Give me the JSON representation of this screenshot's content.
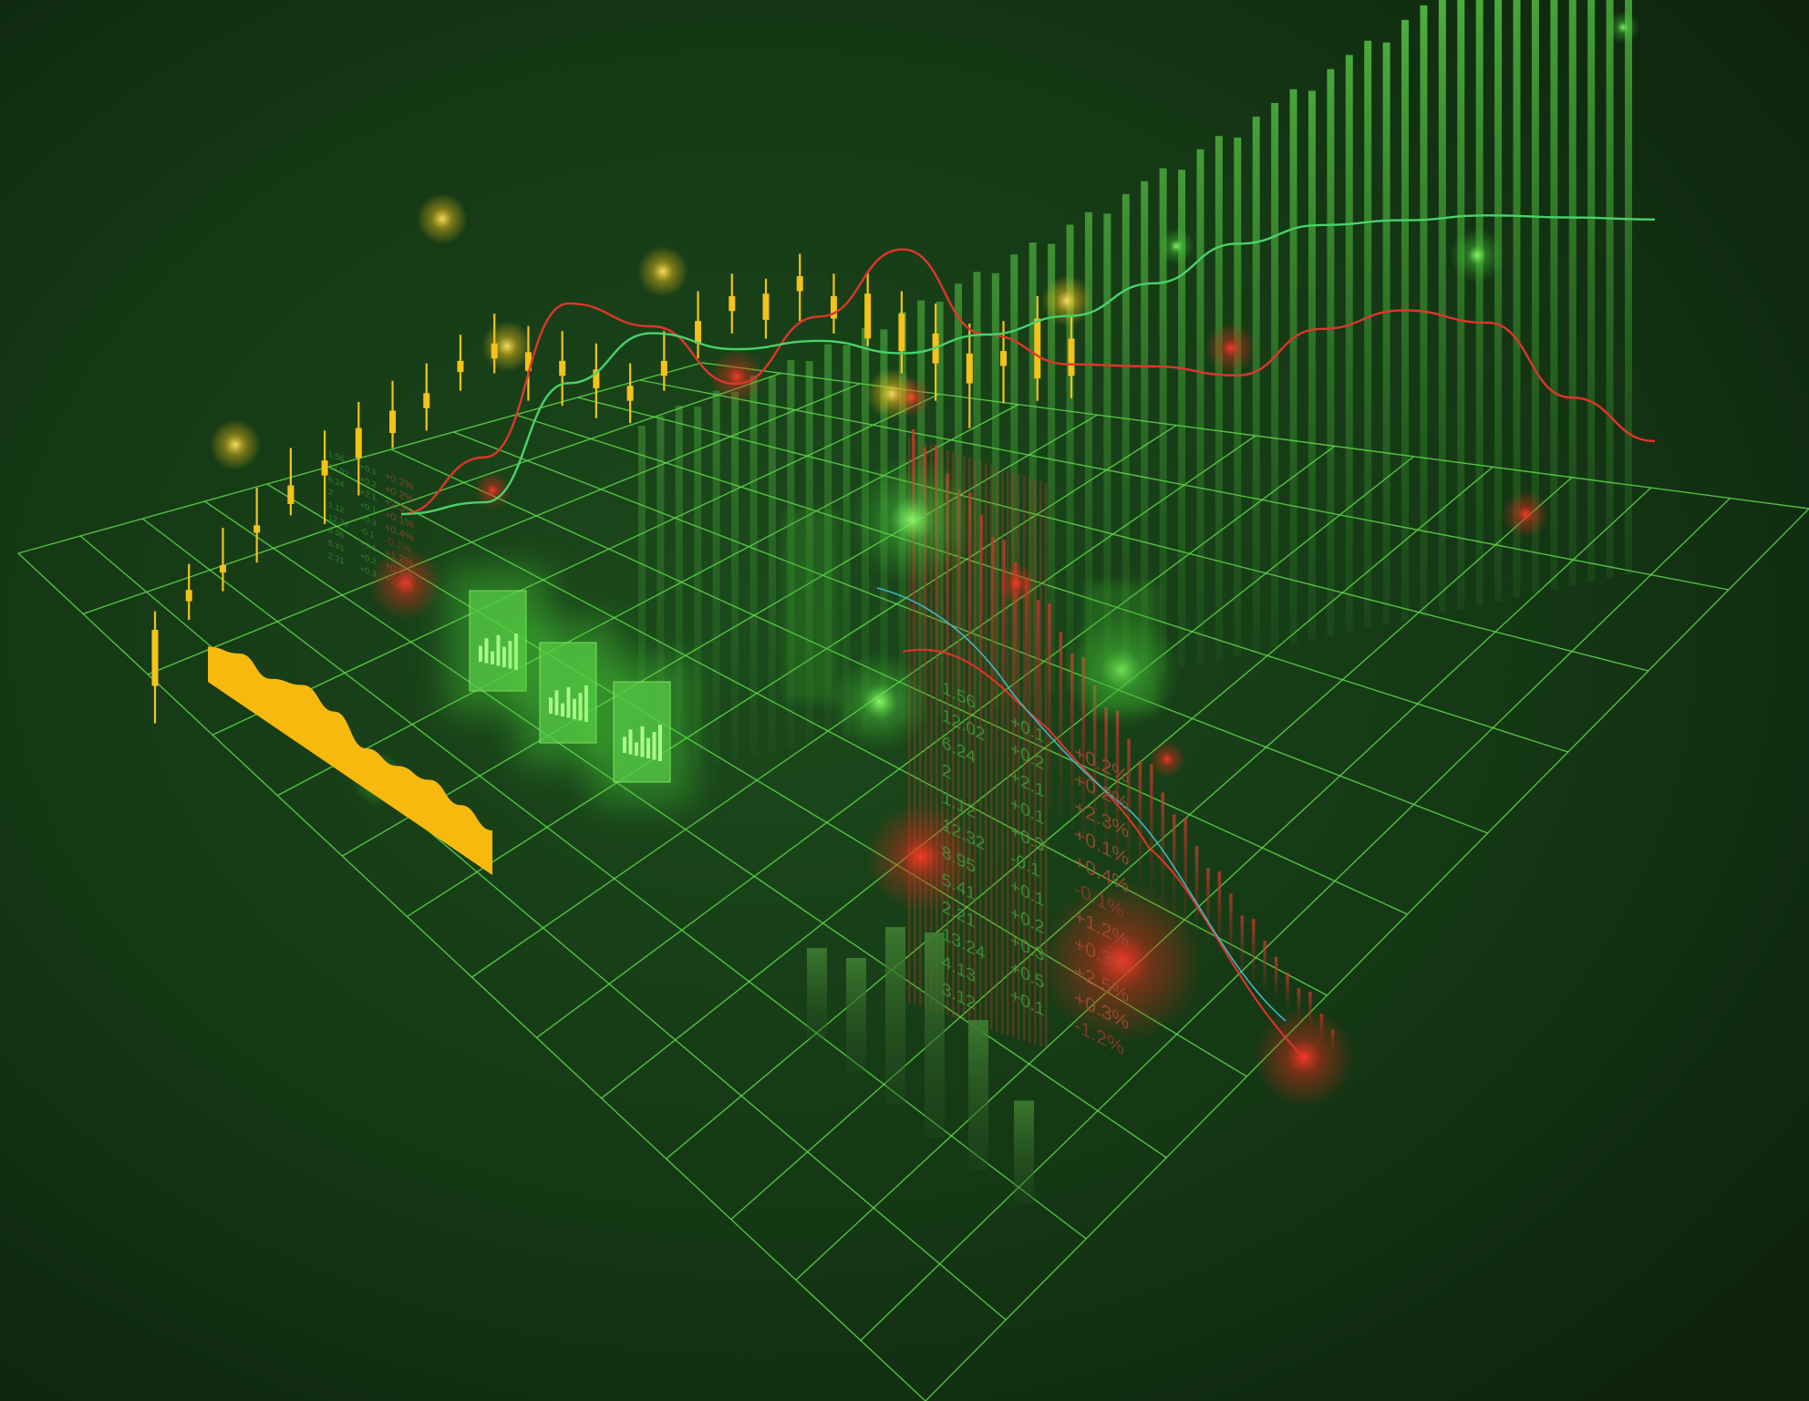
{
  "colors": {
    "background": "#143614",
    "background_edge": "#0d220d",
    "grid": "#5fd84a",
    "candle": "#f5c21a",
    "bar_green": "#4fc23c",
    "bar_red": "#c8342a",
    "line_red": "#e0352b",
    "line_green": "#49d26c",
    "line_cyan": "#3fb6c4",
    "area_yellow": "#f7b90d",
    "text_green": "#3f9a3a",
    "text_red": "#8e3a2a"
  },
  "ticker_main": [
    {
      "price": "1.56",
      "change": "+0.1",
      "pct": "+0.2%"
    },
    {
      "price": "12.02",
      "change": "+0.2",
      "pct": "+0.2%"
    },
    {
      "price": "6.24",
      "change": "+2.1",
      "pct": "+2.3%"
    },
    {
      "price": "2",
      "change": "+0.1",
      "pct": "+0.1%"
    },
    {
      "price": "1.12",
      "change": "+0.3",
      "pct": "+0.4%"
    },
    {
      "price": "12.32",
      "change": "-0.1",
      "pct": "-0.1%"
    },
    {
      "price": "8.95",
      "change": "+0.1",
      "pct": "+1.2%"
    },
    {
      "price": "5.41",
      "change": "+0.2",
      "pct": "+0.3%"
    },
    {
      "price": "2.21",
      "change": "+0.3",
      "pct": "+2.5%"
    },
    {
      "price": "13.24",
      "change": "+0.5",
      "pct": "+0.3%"
    },
    {
      "price": "4.13",
      "change": "+0.1",
      "pct": "-1.2%"
    },
    {
      "price": "3.12",
      "change": "",
      "pct": ""
    }
  ],
  "ticker_small": [
    {
      "price": "1.56",
      "change": "+0.1",
      "pct": "+0.2%"
    },
    {
      "price": "12.02",
      "change": "+0.2",
      "pct": "+0.2%"
    },
    {
      "price": "6.24",
      "change": "+2.1",
      "pct": "+2.3%"
    },
    {
      "price": "2",
      "change": "+0.1",
      "pct": "+0.1%"
    },
    {
      "price": "1.12",
      "change": "+0.3",
      "pct": "+0.4%"
    },
    {
      "price": "12.32",
      "change": "-0.1",
      "pct": "-0.1%"
    },
    {
      "price": "8.95",
      "change": "+0.1",
      "pct": "+1.2%"
    },
    {
      "price": "5.41",
      "change": "+0.2",
      "pct": "+0.3%"
    },
    {
      "price": "2.21",
      "change": "+0.3",
      "pct": "+2.5%"
    }
  ],
  "chart_data": [
    {
      "type": "line",
      "title": "",
      "x": [
        0,
        1,
        2,
        3,
        4,
        5,
        6,
        7,
        8,
        9,
        10,
        11,
        12,
        13,
        14,
        15
      ],
      "y_range": [
        0,
        100
      ],
      "series": [
        {
          "values": [
            20,
            35,
            78,
            70,
            52,
            70,
            88,
            62,
            52,
            50,
            46,
            58,
            62,
            57,
            34,
            20
          ]
        },
        {
          "values": [
            20,
            22,
            55,
            68,
            62,
            63,
            58,
            62,
            66,
            74,
            84,
            88,
            88,
            88,
            86,
            84
          ]
        }
      ]
    },
    {
      "type": "candlestick",
      "title": "",
      "x": [
        0,
        1,
        2,
        3,
        4,
        5,
        6,
        7,
        8,
        9,
        10,
        11,
        12,
        13,
        14,
        15,
        16,
        17,
        18,
        19,
        20,
        21,
        22,
        23,
        24,
        25,
        26,
        27
      ],
      "y_range": [
        0,
        100
      ],
      "ohlc": [
        [
          40,
          45,
          15,
          25
        ],
        [
          48,
          55,
          40,
          45
        ],
        [
          52,
          62,
          45,
          50
        ],
        [
          60,
          70,
          50,
          58
        ],
        [
          68,
          78,
          60,
          63
        ],
        [
          72,
          80,
          55,
          68
        ],
        [
          78,
          85,
          60,
          70
        ],
        [
          80,
          88,
          70,
          74
        ],
        [
          82,
          90,
          72,
          78
        ],
        [
          88,
          95,
          80,
          85
        ],
        [
          90,
          98,
          82,
          86
        ],
        [
          85,
          92,
          72,
          80
        ],
        [
          80,
          88,
          68,
          76
        ],
        [
          75,
          82,
          62,
          70
        ],
        [
          68,
          74,
          58,
          64
        ],
        [
          72,
          80,
          64,
          68
        ],
        [
          80,
          88,
          70,
          74
        ],
        [
          84,
          90,
          74,
          80
        ],
        [
          82,
          86,
          70,
          75
        ],
        [
          84,
          90,
          72,
          80
        ],
        [
          76,
          82,
          66,
          70
        ],
        [
          74,
          80,
          60,
          62
        ],
        [
          66,
          72,
          50,
          56
        ],
        [
          58,
          66,
          40,
          50
        ],
        [
          50,
          58,
          30,
          42
        ],
        [
          48,
          56,
          34,
          44
        ],
        [
          54,
          60,
          32,
          38
        ],
        [
          46,
          52,
          30,
          36
        ]
      ]
    },
    {
      "type": "bar",
      "title": "",
      "y_range": [
        0,
        100
      ],
      "values": [
        20,
        22,
        24,
        22,
        26,
        24,
        28,
        26,
        30,
        28,
        32,
        30,
        34,
        32,
        36,
        38,
        36,
        40,
        42,
        40,
        44,
        46,
        44,
        48,
        50,
        48,
        52,
        54,
        56,
        54,
        58,
        60,
        58,
        62,
        64,
        66,
        64,
        68,
        70,
        72,
        70,
        74,
        76,
        78,
        80,
        82,
        84,
        86,
        88,
        90,
        92,
        94,
        96,
        100
      ]
    },
    {
      "type": "bar",
      "title": "",
      "y_range": [
        0,
        100
      ],
      "values": [
        85,
        82,
        86,
        80,
        78,
        80,
        76,
        72,
        74,
        70,
        68,
        64,
        66,
        60,
        56,
        58,
        52,
        48,
        50,
        44,
        40,
        42,
        36,
        32,
        34,
        28,
        24,
        26,
        22,
        18,
        20,
        16,
        14,
        12,
        10,
        12,
        8,
        6
      ]
    },
    {
      "type": "bar",
      "title": "",
      "y_range": [
        0,
        100
      ],
      "values": [
        40,
        50,
        78,
        90,
        66,
        45
      ]
    },
    {
      "type": "area",
      "title": "",
      "x": [
        0,
        1,
        2,
        3,
        4,
        5,
        6,
        7,
        8,
        9
      ],
      "y_range": [
        0,
        100
      ],
      "values": [
        55,
        78,
        72,
        96,
        88,
        64,
        70,
        82,
        76,
        70
      ]
    }
  ]
}
